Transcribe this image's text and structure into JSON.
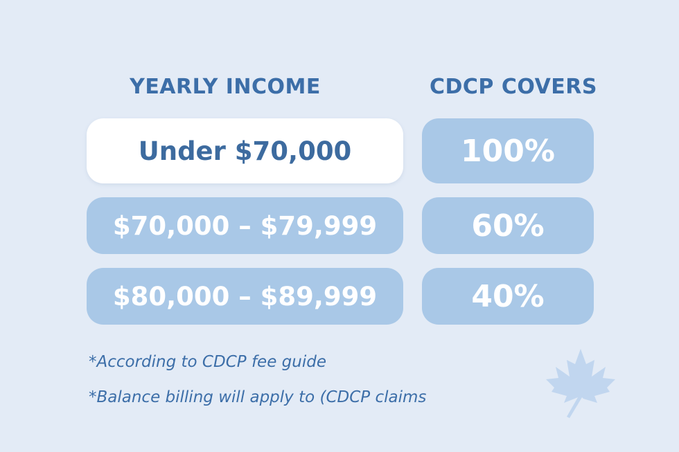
{
  "headers": {
    "income": "YEARLY INCOME",
    "covers": "CDCP COVERS"
  },
  "rows": [
    {
      "income": "Under $70,000",
      "coverage": "100%"
    },
    {
      "income": "$70,000 – $79,999",
      "coverage": "60%"
    },
    {
      "income": "$80,000 – $89,999",
      "coverage": "40%"
    }
  ],
  "notes": [
    "*According to CDCP fee guide",
    "*Balance billing will apply to (CDCP claims"
  ],
  "icons": {
    "decoration": "maple-leaf-icon"
  },
  "colors": {
    "background": "#e3ebf6",
    "accent_text": "#3c6ea8",
    "pill_blue": "#a9c8e7",
    "pill_highlight": "#ffffff",
    "leaf": "#bcd4ee"
  }
}
